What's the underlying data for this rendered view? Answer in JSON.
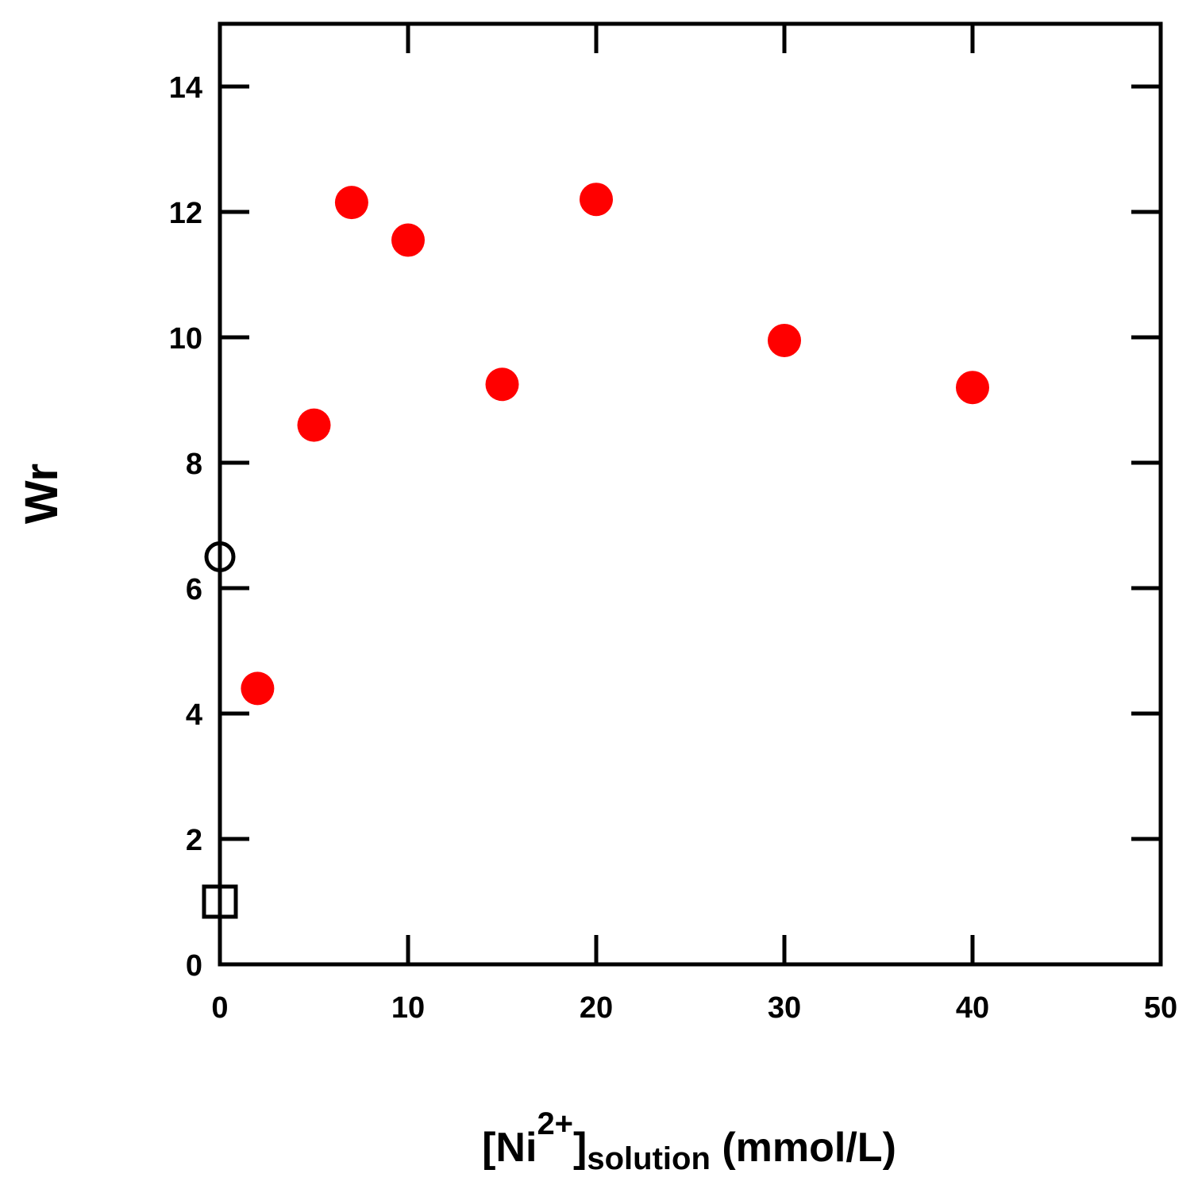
{
  "chart_data": {
    "type": "scatter",
    "title": "",
    "xlabel": {
      "prefix": "[Ni",
      "superscript": "2+",
      "bracket": "]",
      "subscript": "solution",
      "unit": " (mmol/L)"
    },
    "ylabel": "Wr",
    "xlim": [
      0,
      50
    ],
    "ylim": [
      0,
      15
    ],
    "x_ticks": [
      0,
      10,
      20,
      30,
      40,
      50
    ],
    "y_ticks": [
      0,
      2,
      4,
      6,
      8,
      10,
      12,
      14
    ],
    "grid": false,
    "series": [
      {
        "marker": "filled-circle",
        "color": "#ff0000",
        "points": [
          {
            "x": 2,
            "y": 4.4
          },
          {
            "x": 5,
            "y": 8.6
          },
          {
            "x": 7,
            "y": 12.15
          },
          {
            "x": 10,
            "y": 11.55
          },
          {
            "x": 15,
            "y": 9.25
          },
          {
            "x": 20,
            "y": 12.2
          },
          {
            "x": 30,
            "y": 9.95
          },
          {
            "x": 40,
            "y": 9.2
          }
        ]
      },
      {
        "marker": "open-circle",
        "color": "#000000",
        "points": [
          {
            "x": 0,
            "y": 6.5
          }
        ]
      },
      {
        "marker": "open-square",
        "color": "#000000",
        "points": [
          {
            "x": 0,
            "y": 1.0
          }
        ]
      }
    ]
  }
}
